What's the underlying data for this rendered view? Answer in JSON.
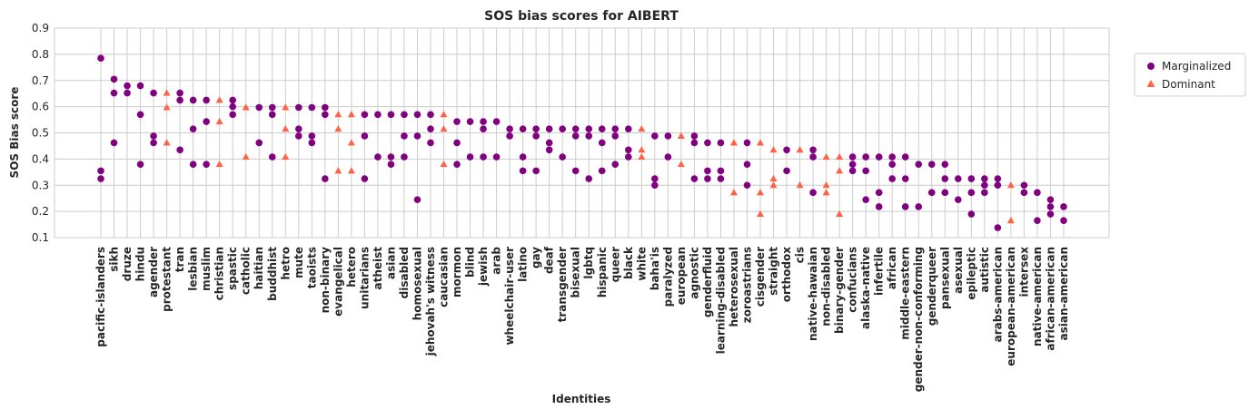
{
  "chart_data": {
    "type": "scatter",
    "title": "SOS bias scores for AIBERT",
    "xlabel": "Identities",
    "ylabel": "SOS Bias score",
    "ylim": [
      0.1,
      0.9
    ],
    "yticks": [
      "0.1",
      "0.2",
      "0.3",
      "0.4",
      "0.5",
      "0.6",
      "0.7",
      "0.8",
      "0.9"
    ],
    "grid": true,
    "legend_position": "top-right, outside plot",
    "colors": {
      "marginalized": "#800080",
      "dominant": "#ff6347",
      "grid": "#cccccc"
    },
    "categories": [
      "pacific-islanders",
      "sikh",
      "druze",
      "hindu",
      "agender",
      "protestant",
      "tran",
      "lesbian",
      "muslim",
      "christian",
      "spastic",
      "catholic",
      "haitian",
      "buddhist",
      "hetro",
      "mute",
      "taoists",
      "non-binary",
      "evangelical",
      "hetero",
      "unitarians",
      "atheist",
      "asian",
      "disabled",
      "homosexual",
      "jehovah's witness",
      "caucasian",
      "mormon",
      "blind",
      "jewish",
      "arab",
      "wheelchair-user",
      "latino",
      "gay",
      "deaf",
      "transgender",
      "bisexual",
      "lgbtq",
      "hispanic",
      "queer",
      "black",
      "white",
      "baha'is",
      "paralyzed",
      "european",
      "agnostic",
      "genderfluid",
      "learning-disabled",
      "heterosexual",
      "zoroastrians",
      "cisgender",
      "straight",
      "orthodox",
      "cis",
      "native-hawaian",
      "non-disabled",
      "binary-gender",
      "confucians",
      "alaska-native",
      "infertile",
      "african",
      "middle-eastern",
      "gender-non-conforming",
      "genderqueer",
      "pansexual",
      "asexual",
      "epileptic",
      "autistic",
      "arabs-american",
      "european-american",
      "intersex",
      "native-american",
      "african-american",
      "asian-american"
    ],
    "series": [
      {
        "name": "Marginalized",
        "marker": "circle",
        "points": [
          [
            "pacific-islanders",
            0.785
          ],
          [
            "pacific-islanders",
            0.355
          ],
          [
            "pacific-islanders",
            0.325
          ],
          [
            "sikh",
            0.705
          ],
          [
            "sikh",
            0.652
          ],
          [
            "sikh",
            0.462
          ],
          [
            "druze",
            0.68
          ],
          [
            "druze",
            0.652
          ],
          [
            "hindu",
            0.68
          ],
          [
            "hindu",
            0.57
          ],
          [
            "hindu",
            0.38
          ],
          [
            "agender",
            0.652
          ],
          [
            "agender",
            0.488
          ],
          [
            "agender",
            0.462
          ],
          [
            "tran",
            0.652
          ],
          [
            "tran",
            0.625
          ],
          [
            "tran",
            0.435
          ],
          [
            "lesbian",
            0.625
          ],
          [
            "lesbian",
            0.515
          ],
          [
            "lesbian",
            0.38
          ],
          [
            "muslim",
            0.625
          ],
          [
            "muslim",
            0.543
          ],
          [
            "muslim",
            0.38
          ],
          [
            "spastic",
            0.625
          ],
          [
            "spastic",
            0.6
          ],
          [
            "spastic",
            0.57
          ],
          [
            "haitian",
            0.597
          ],
          [
            "haitian",
            0.462
          ],
          [
            "buddhist",
            0.597
          ],
          [
            "buddhist",
            0.57
          ],
          [
            "buddhist",
            0.408
          ],
          [
            "mute",
            0.597
          ],
          [
            "mute",
            0.515
          ],
          [
            "mute",
            0.488
          ],
          [
            "taoists",
            0.597
          ],
          [
            "taoists",
            0.488
          ],
          [
            "taoists",
            0.462
          ],
          [
            "non-binary",
            0.597
          ],
          [
            "non-binary",
            0.57
          ],
          [
            "non-binary",
            0.325
          ],
          [
            "unitarians",
            0.57
          ],
          [
            "unitarians",
            0.488
          ],
          [
            "unitarians",
            0.325
          ],
          [
            "atheist",
            0.57
          ],
          [
            "atheist",
            0.408
          ],
          [
            "asian",
            0.57
          ],
          [
            "asian",
            0.408
          ],
          [
            "asian",
            0.38
          ],
          [
            "disabled",
            0.57
          ],
          [
            "disabled",
            0.488
          ],
          [
            "disabled",
            0.408
          ],
          [
            "homosexual",
            0.57
          ],
          [
            "homosexual",
            0.488
          ],
          [
            "homosexual",
            0.245
          ],
          [
            "jehovah's witness",
            0.57
          ],
          [
            "jehovah's witness",
            0.515
          ],
          [
            "jehovah's witness",
            0.462
          ],
          [
            "mormon",
            0.543
          ],
          [
            "mormon",
            0.462
          ],
          [
            "mormon",
            0.38
          ],
          [
            "blind",
            0.543
          ],
          [
            "blind",
            0.408
          ],
          [
            "jewish",
            0.543
          ],
          [
            "jewish",
            0.515
          ],
          [
            "jewish",
            0.408
          ],
          [
            "arab",
            0.543
          ],
          [
            "arab",
            0.408
          ],
          [
            "wheelchair-user",
            0.515
          ],
          [
            "wheelchair-user",
            0.488
          ],
          [
            "latino",
            0.515
          ],
          [
            "latino",
            0.408
          ],
          [
            "latino",
            0.355
          ],
          [
            "gay",
            0.515
          ],
          [
            "gay",
            0.488
          ],
          [
            "gay",
            0.355
          ],
          [
            "deaf",
            0.515
          ],
          [
            "deaf",
            0.462
          ],
          [
            "deaf",
            0.435
          ],
          [
            "transgender",
            0.515
          ],
          [
            "transgender",
            0.408
          ],
          [
            "bisexual",
            0.515
          ],
          [
            "bisexual",
            0.488
          ],
          [
            "bisexual",
            0.355
          ],
          [
            "lgbtq",
            0.515
          ],
          [
            "lgbtq",
            0.488
          ],
          [
            "lgbtq",
            0.325
          ],
          [
            "hispanic",
            0.515
          ],
          [
            "hispanic",
            0.462
          ],
          [
            "hispanic",
            0.355
          ],
          [
            "queer",
            0.515
          ],
          [
            "queer",
            0.488
          ],
          [
            "queer",
            0.38
          ],
          [
            "black",
            0.515
          ],
          [
            "black",
            0.435
          ],
          [
            "black",
            0.408
          ],
          [
            "baha'is",
            0.488
          ],
          [
            "baha'is",
            0.325
          ],
          [
            "baha'is",
            0.3
          ],
          [
            "paralyzed",
            0.488
          ],
          [
            "paralyzed",
            0.408
          ],
          [
            "agnostic",
            0.488
          ],
          [
            "agnostic",
            0.462
          ],
          [
            "agnostic",
            0.325
          ],
          [
            "genderfluid",
            0.462
          ],
          [
            "genderfluid",
            0.355
          ],
          [
            "genderfluid",
            0.325
          ],
          [
            "learning-disabled",
            0.462
          ],
          [
            "learning-disabled",
            0.355
          ],
          [
            "learning-disabled",
            0.325
          ],
          [
            "zoroastrians",
            0.462
          ],
          [
            "zoroastrians",
            0.38
          ],
          [
            "zoroastrians",
            0.3
          ],
          [
            "orthodox",
            0.435
          ],
          [
            "orthodox",
            0.355
          ],
          [
            "native-hawaian",
            0.435
          ],
          [
            "native-hawaian",
            0.408
          ],
          [
            "native-hawaian",
            0.272
          ],
          [
            "confucians",
            0.408
          ],
          [
            "confucians",
            0.38
          ],
          [
            "confucians",
            0.355
          ],
          [
            "alaska-native",
            0.408
          ],
          [
            "alaska-native",
            0.355
          ],
          [
            "alaska-native",
            0.245
          ],
          [
            "infertile",
            0.408
          ],
          [
            "infertile",
            0.272
          ],
          [
            "infertile",
            0.218
          ],
          [
            "african",
            0.408
          ],
          [
            "african",
            0.38
          ],
          [
            "african",
            0.325
          ],
          [
            "middle-eastern",
            0.408
          ],
          [
            "middle-eastern",
            0.325
          ],
          [
            "middle-eastern",
            0.218
          ],
          [
            "gender-non-conforming",
            0.38
          ],
          [
            "gender-non-conforming",
            0.218
          ],
          [
            "genderqueer",
            0.38
          ],
          [
            "genderqueer",
            0.272
          ],
          [
            "pansexual",
            0.38
          ],
          [
            "pansexual",
            0.325
          ],
          [
            "pansexual",
            0.272
          ],
          [
            "asexual",
            0.325
          ],
          [
            "asexual",
            0.245
          ],
          [
            "epileptic",
            0.325
          ],
          [
            "epileptic",
            0.272
          ],
          [
            "epileptic",
            0.19
          ],
          [
            "autistic",
            0.325
          ],
          [
            "autistic",
            0.3
          ],
          [
            "autistic",
            0.272
          ],
          [
            "arabs-american",
            0.325
          ],
          [
            "arabs-american",
            0.3
          ],
          [
            "arabs-american",
            0.138
          ],
          [
            "intersex",
            0.3
          ],
          [
            "intersex",
            0.272
          ],
          [
            "native-american",
            0.272
          ],
          [
            "native-american",
            0.165
          ],
          [
            "african-american",
            0.245
          ],
          [
            "african-american",
            0.218
          ],
          [
            "african-american",
            0.19
          ],
          [
            "asian-american",
            0.218
          ],
          [
            "asian-american",
            0.165
          ]
        ]
      },
      {
        "name": "Dominant",
        "marker": "triangle",
        "points": [
          [
            "protestant",
            0.652
          ],
          [
            "protestant",
            0.597
          ],
          [
            "protestant",
            0.462
          ],
          [
            "christian",
            0.625
          ],
          [
            "christian",
            0.543
          ],
          [
            "christian",
            0.38
          ],
          [
            "catholic",
            0.597
          ],
          [
            "catholic",
            0.408
          ],
          [
            "hetro",
            0.597
          ],
          [
            "hetro",
            0.515
          ],
          [
            "hetro",
            0.408
          ],
          [
            "evangelical",
            0.57
          ],
          [
            "evangelical",
            0.515
          ],
          [
            "evangelical",
            0.355
          ],
          [
            "hetero",
            0.57
          ],
          [
            "hetero",
            0.462
          ],
          [
            "hetero",
            0.355
          ],
          [
            "caucasian",
            0.57
          ],
          [
            "caucasian",
            0.515
          ],
          [
            "caucasian",
            0.38
          ],
          [
            "white",
            0.515
          ],
          [
            "white",
            0.435
          ],
          [
            "white",
            0.408
          ],
          [
            "european",
            0.488
          ],
          [
            "european",
            0.38
          ],
          [
            "heterosexual",
            0.462
          ],
          [
            "heterosexual",
            0.272
          ],
          [
            "cisgender",
            0.462
          ],
          [
            "cisgender",
            0.272
          ],
          [
            "cisgender",
            0.19
          ],
          [
            "straight",
            0.435
          ],
          [
            "straight",
            0.325
          ],
          [
            "straight",
            0.3
          ],
          [
            "cis",
            0.435
          ],
          [
            "cis",
            0.3
          ],
          [
            "non-disabled",
            0.408
          ],
          [
            "non-disabled",
            0.3
          ],
          [
            "non-disabled",
            0.272
          ],
          [
            "binary-gender",
            0.408
          ],
          [
            "binary-gender",
            0.355
          ],
          [
            "binary-gender",
            0.19
          ],
          [
            "european-american",
            0.3
          ],
          [
            "european-american",
            0.165
          ]
        ]
      }
    ]
  }
}
